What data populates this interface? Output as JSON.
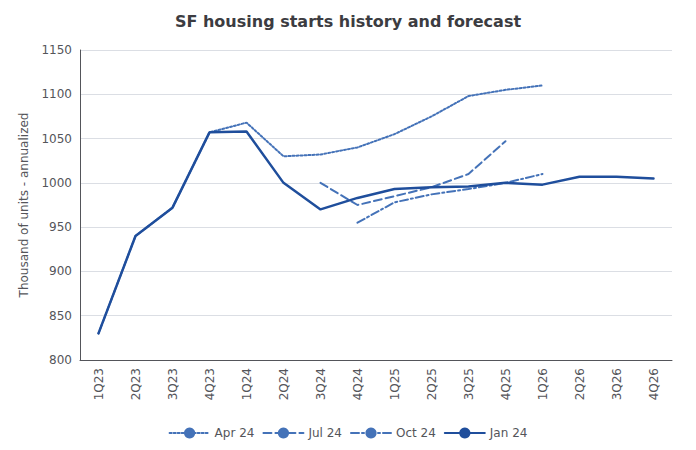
{
  "chart_data": {
    "type": "line",
    "title": "SF housing starts history and forecast",
    "ylabel": "Thousand of units - annualized",
    "categories": [
      "1Q23",
      "2Q23",
      "3Q23",
      "4Q23",
      "1Q24",
      "2Q24",
      "3Q24",
      "4Q24",
      "1Q25",
      "2Q25",
      "3Q25",
      "4Q25",
      "1Q26",
      "2Q26",
      "3Q26",
      "4Q26"
    ],
    "series": [
      {
        "name": "Apr 24",
        "color": "#4472b8",
        "line_style": "dotted",
        "values": [
          830,
          940,
          972,
          1057,
          1068,
          1030,
          1032,
          1040,
          1055,
          1075,
          1098,
          1105,
          1110,
          null,
          null,
          null
        ]
      },
      {
        "name": "Jul 24",
        "color": "#4472b8",
        "line_style": "dashed",
        "values": [
          null,
          null,
          null,
          null,
          null,
          null,
          1000,
          975,
          985,
          995,
          1010,
          1047,
          null,
          null,
          null,
          null
        ]
      },
      {
        "name": "Oct 24",
        "color": "#4472b8",
        "line_style": "dashdot",
        "values": [
          null,
          null,
          null,
          null,
          null,
          null,
          null,
          955,
          978,
          987,
          993,
          1000,
          1010,
          null,
          null,
          null
        ]
      },
      {
        "name": "Jan 24",
        "color": "#1f4e9c",
        "line_style": "solid",
        "values": [
          830,
          940,
          972,
          1057,
          1058,
          1000,
          970,
          983,
          993,
          995,
          996,
          1000,
          998,
          1007,
          1007,
          1005
        ]
      }
    ],
    "ylim": [
      800,
      1150
    ],
    "yticks": [
      800,
      850,
      900,
      950,
      1000,
      1050,
      1100,
      1150
    ],
    "grid": true,
    "legend": "bottom"
  }
}
